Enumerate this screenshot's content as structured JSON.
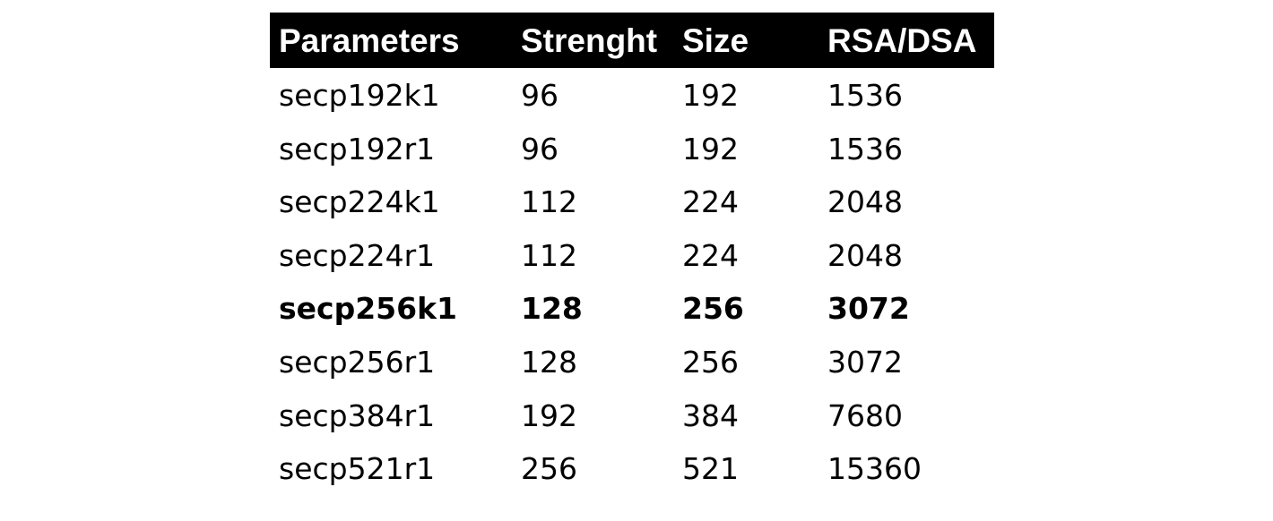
{
  "table": {
    "headers": [
      "Parameters",
      "Strenght",
      "Size",
      "RSA/DSA"
    ],
    "rows": [
      {
        "cells": [
          "secp192k1",
          "96",
          "192",
          "1536"
        ],
        "bold": false
      },
      {
        "cells": [
          "secp192r1",
          "96",
          "192",
          "1536"
        ],
        "bold": false
      },
      {
        "cells": [
          "secp224k1",
          "112",
          "224",
          "2048"
        ],
        "bold": false
      },
      {
        "cells": [
          "secp224r1",
          "112",
          "224",
          "2048"
        ],
        "bold": false
      },
      {
        "cells": [
          "secp256k1",
          "128",
          "256",
          "3072"
        ],
        "bold": true
      },
      {
        "cells": [
          "secp256r1",
          "128",
          "256",
          "3072"
        ],
        "bold": false
      },
      {
        "cells": [
          "secp384r1",
          "192",
          "384",
          "7680"
        ],
        "bold": false
      },
      {
        "cells": [
          "secp521r1",
          "256",
          "521",
          "15360"
        ],
        "bold": false
      }
    ]
  },
  "colors": {
    "header_bg": "#000000",
    "header_text": "#ffffff",
    "body_text": "#000000"
  }
}
